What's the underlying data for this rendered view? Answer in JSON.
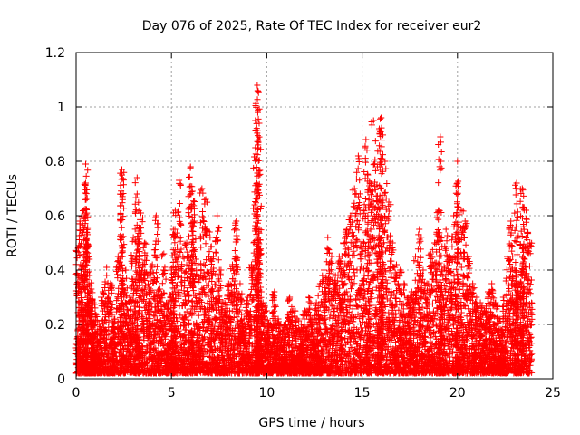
{
  "chart_data": {
    "type": "scatter",
    "title": "Day 076 of 2025, Rate Of TEC Index for receiver eur2",
    "xlabel": "GPS time / hours",
    "ylabel": "ROTI / TECUs",
    "xlim": [
      0,
      25
    ],
    "ylim": [
      0,
      1.2
    ],
    "x_ticks": [
      "0",
      "5",
      "10",
      "15",
      "20",
      "25"
    ],
    "y_ticks": [
      "0",
      "0.2",
      "0.4",
      "0.6",
      "0.8",
      "1",
      "1.2"
    ],
    "grid": true,
    "legend": "none",
    "marker": "plus",
    "color": "#ff0000",
    "series": [
      {
        "x": [
          0.1,
          0.2,
          0.3,
          0.4,
          0.5,
          0.6,
          0.7,
          0.8,
          0.9,
          1.0,
          1.2,
          1.4,
          1.6,
          1.8,
          2.0,
          2.2,
          2.4,
          2.6,
          2.8,
          3.0,
          3.2,
          3.4,
          3.6,
          3.8,
          4.0,
          4.2,
          4.4,
          4.6,
          4.8,
          5.0,
          5.2,
          5.4,
          5.6,
          5.8,
          6.0,
          6.2,
          6.4,
          6.6,
          6.8,
          7.0,
          7.2,
          7.4,
          7.6,
          7.8,
          8.0,
          8.2,
          8.4,
          8.6,
          8.8,
          9.0,
          9.2,
          9.4,
          9.5,
          9.6,
          9.8,
          10.0,
          10.2,
          10.4,
          10.6,
          10.8,
          11.0,
          11.2,
          11.4,
          11.6,
          11.8,
          12.0,
          12.2,
          12.4,
          12.6,
          12.8,
          13.0,
          13.2,
          13.4,
          13.6,
          13.8,
          14.0,
          14.2,
          14.4,
          14.6,
          14.8,
          15.0,
          15.2,
          15.4,
          15.6,
          15.8,
          16.0,
          16.2,
          16.4,
          16.6,
          16.8,
          17.0,
          17.2,
          17.4,
          17.6,
          17.8,
          18.0,
          18.2,
          18.4,
          18.6,
          18.8,
          19.0,
          19.2,
          19.4,
          19.6,
          19.8,
          20.0,
          20.2,
          20.4,
          20.6,
          20.8,
          21.0,
          21.2,
          21.4,
          21.6,
          21.8,
          22.0,
          22.2,
          22.4,
          22.6,
          22.8,
          23.0,
          23.2,
          23.4,
          23.6,
          23.8,
          0.5,
          2.4,
          3.2,
          5.1,
          6.1,
          9.5,
          9.52,
          9.6,
          15.3,
          15.9,
          16.0,
          19.1,
          20.0,
          23.1,
          23.4
        ],
        "y": [
          0.48,
          0.58,
          0.42,
          0.62,
          0.79,
          0.55,
          0.38,
          0.33,
          0.28,
          0.24,
          0.2,
          0.32,
          0.41,
          0.35,
          0.22,
          0.45,
          0.75,
          0.4,
          0.3,
          0.52,
          0.74,
          0.61,
          0.5,
          0.38,
          0.42,
          0.6,
          0.33,
          0.46,
          0.28,
          0.4,
          0.62,
          0.73,
          0.45,
          0.5,
          0.78,
          0.58,
          0.42,
          0.7,
          0.66,
          0.54,
          0.45,
          0.6,
          0.4,
          0.28,
          0.35,
          0.42,
          0.58,
          0.35,
          0.22,
          0.3,
          0.42,
          0.85,
          0.6,
          0.55,
          0.28,
          0.25,
          0.2,
          0.32,
          0.22,
          0.18,
          0.2,
          0.3,
          0.25,
          0.22,
          0.2,
          0.25,
          0.3,
          0.22,
          0.28,
          0.35,
          0.4,
          0.52,
          0.45,
          0.38,
          0.45,
          0.5,
          0.55,
          0.6,
          0.7,
          0.82,
          0.62,
          0.88,
          0.72,
          0.95,
          0.78,
          0.96,
          0.8,
          0.65,
          0.5,
          0.42,
          0.4,
          0.35,
          0.3,
          0.32,
          0.45,
          0.55,
          0.4,
          0.35,
          0.46,
          0.5,
          0.62,
          0.4,
          0.55,
          0.45,
          0.6,
          0.72,
          0.62,
          0.58,
          0.45,
          0.35,
          0.3,
          0.28,
          0.25,
          0.32,
          0.35,
          0.28,
          0.22,
          0.3,
          0.45,
          0.58,
          0.4,
          0.35,
          0.48,
          0.62,
          0.5,
          0.72,
          0.77,
          0.68,
          0.55,
          0.69,
          1.08,
          1.06,
          0.94,
          0.75,
          0.92,
          0.96,
          0.89,
          0.8,
          0.72,
          0.7
        ]
      }
    ]
  }
}
